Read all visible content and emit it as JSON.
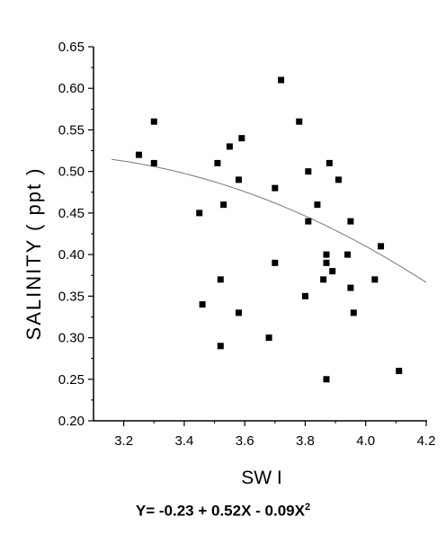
{
  "chart_data": {
    "type": "scatter",
    "xlabel": "SW I",
    "ylabel": "SALINITY ( ppt )",
    "xlim": [
      3.1,
      4.2
    ],
    "ylim": [
      0.2,
      0.65
    ],
    "x_ticks": [
      "3.2",
      "3.4",
      "3.6",
      "3.8",
      "4.0",
      "4.2"
    ],
    "y_ticks": [
      "0.20",
      "0.25",
      "0.30",
      "0.35",
      "0.40",
      "0.45",
      "0.50",
      "0.55",
      "0.60",
      "0.65"
    ],
    "points": [
      [
        3.25,
        0.52
      ],
      [
        3.3,
        0.56
      ],
      [
        3.3,
        0.51
      ],
      [
        3.45,
        0.45
      ],
      [
        3.46,
        0.34
      ],
      [
        3.51,
        0.51
      ],
      [
        3.52,
        0.37
      ],
      [
        3.52,
        0.29
      ],
      [
        3.53,
        0.46
      ],
      [
        3.55,
        0.53
      ],
      [
        3.58,
        0.49
      ],
      [
        3.58,
        0.33
      ],
      [
        3.59,
        0.54
      ],
      [
        3.68,
        0.3
      ],
      [
        3.7,
        0.48
      ],
      [
        3.7,
        0.39
      ],
      [
        3.72,
        0.61
      ],
      [
        3.78,
        0.56
      ],
      [
        3.8,
        0.35
      ],
      [
        3.81,
        0.5
      ],
      [
        3.81,
        0.44
      ],
      [
        3.84,
        0.46
      ],
      [
        3.86,
        0.37
      ],
      [
        3.87,
        0.4
      ],
      [
        3.87,
        0.39
      ],
      [
        3.87,
        0.25
      ],
      [
        3.88,
        0.51
      ],
      [
        3.89,
        0.38
      ],
      [
        3.91,
        0.49
      ],
      [
        3.94,
        0.4
      ],
      [
        3.95,
        0.36
      ],
      [
        3.95,
        0.44
      ],
      [
        3.96,
        0.33
      ],
      [
        4.03,
        0.37
      ],
      [
        4.05,
        0.41
      ],
      [
        4.11,
        0.26
      ]
    ],
    "fit": {
      "intercept": -0.23,
      "b1": 0.52,
      "b2": -0.09,
      "x_range": [
        3.16,
        4.2
      ]
    },
    "equation": {
      "main": "Y= -0.23 + 0.52X - 0.09X",
      "exponent": "2"
    },
    "grid": false,
    "legend": "none"
  }
}
